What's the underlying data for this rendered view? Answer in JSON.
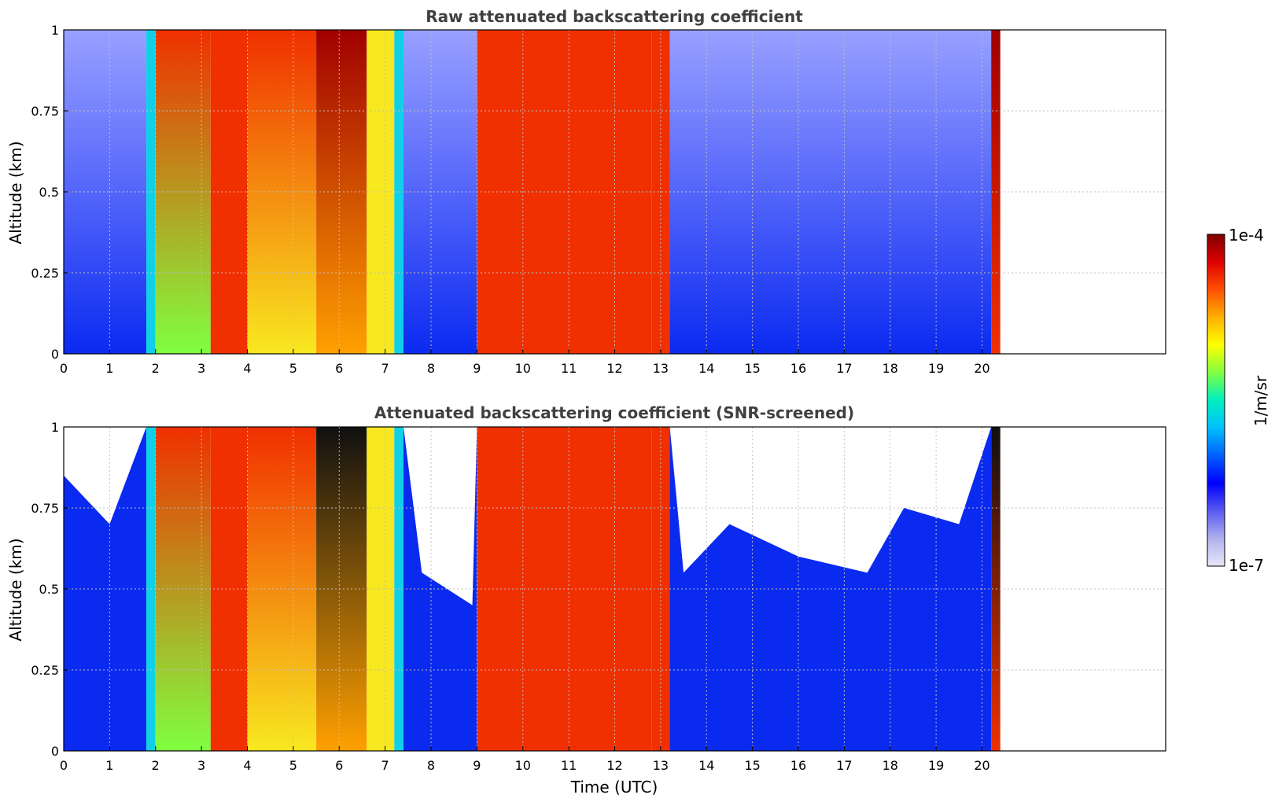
{
  "chart_data": [
    {
      "type": "heatmap",
      "title": "Raw attenuated backscattering coefficient",
      "xlabel": "",
      "ylabel": "Altitude (km)",
      "xlim": [
        0,
        24
      ],
      "ylim": [
        0,
        1
      ],
      "xticks": [
        "0",
        "1",
        "2",
        "3",
        "4",
        "5",
        "6",
        "7",
        "8",
        "9",
        "10",
        "11",
        "12",
        "13",
        "14",
        "15",
        "16",
        "17",
        "18",
        "19",
        "20"
      ],
      "yticks": [
        "0",
        "0.25",
        "0.5",
        "0.75",
        "1"
      ],
      "grid": true,
      "data_end_time": 20.4,
      "columns": [
        {
          "t": 0.0,
          "top": "sparse",
          "bottom": "blue"
        },
        {
          "t": 1.8,
          "top": "cyan",
          "bottom": "cyan"
        },
        {
          "t": 2.0,
          "top": "red",
          "bottom": "green"
        },
        {
          "t": 3.2,
          "top": "red",
          "bottom": "red"
        },
        {
          "t": 4.0,
          "top": "red",
          "bottom": "yellow"
        },
        {
          "t": 5.5,
          "top": "darkred",
          "bottom": "orange"
        },
        {
          "t": 6.6,
          "top": "yellow",
          "bottom": "yellow"
        },
        {
          "t": 7.2,
          "top": "cyan",
          "bottom": "cyan"
        },
        {
          "t": 7.4,
          "top": "sparse",
          "bottom": "blue"
        },
        {
          "t": 9.0,
          "top": "red",
          "bottom": "red"
        },
        {
          "t": 12.3,
          "top": "red",
          "bottom": "red"
        },
        {
          "t": 12.8,
          "top": "red",
          "bottom": "red"
        },
        {
          "t": 13.2,
          "top": "sparse",
          "bottom": "blue"
        },
        {
          "t": 20.2,
          "top": "darkred",
          "bottom": "red"
        }
      ]
    },
    {
      "type": "heatmap",
      "title": "Attenuated backscattering coefficient (SNR-screened)",
      "xlabel": "Time (UTC)",
      "ylabel": "Altitude (km)",
      "xlim": [
        0,
        24
      ],
      "ylim": [
        0,
        1
      ],
      "xticks": [
        "0",
        "1",
        "2",
        "3",
        "4",
        "5",
        "6",
        "7",
        "8",
        "9",
        "10",
        "11",
        "12",
        "13",
        "14",
        "15",
        "16",
        "17",
        "18",
        "19",
        "20"
      ],
      "yticks": [
        "0",
        "0.25",
        "0.5",
        "0.75",
        "1"
      ],
      "grid": true,
      "data_end_time": 20.4,
      "screened_cloud_top_km": [
        {
          "t": 0.0,
          "h": 0.85
        },
        {
          "t": 1.0,
          "h": 0.7
        },
        {
          "t": 1.8,
          "h": 1.0
        },
        {
          "t": 7.4,
          "h": 1.0
        },
        {
          "t": 7.8,
          "h": 0.55
        },
        {
          "t": 8.9,
          "h": 0.45
        },
        {
          "t": 9.0,
          "h": 1.0
        },
        {
          "t": 13.2,
          "h": 1.0
        },
        {
          "t": 13.5,
          "h": 0.55
        },
        {
          "t": 14.5,
          "h": 0.7
        },
        {
          "t": 16.0,
          "h": 0.6
        },
        {
          "t": 17.5,
          "h": 0.55
        },
        {
          "t": 18.3,
          "h": 0.75
        },
        {
          "t": 19.5,
          "h": 0.7
        },
        {
          "t": 20.2,
          "h": 1.0
        }
      ]
    }
  ],
  "colorbar": {
    "label": "1/m/sr",
    "max_label": "1e-4",
    "min_label": "1e-7",
    "scale": "log",
    "range": [
      1e-07,
      0.0001
    ],
    "colormap": [
      "#e8e8f8",
      "#b0b0ee",
      "#5a5af0",
      "#0000ff",
      "#0060ff",
      "#00c0ff",
      "#00f0c0",
      "#80ff40",
      "#ffff00",
      "#ffb000",
      "#ff5000",
      "#e00000",
      "#800000"
    ]
  }
}
